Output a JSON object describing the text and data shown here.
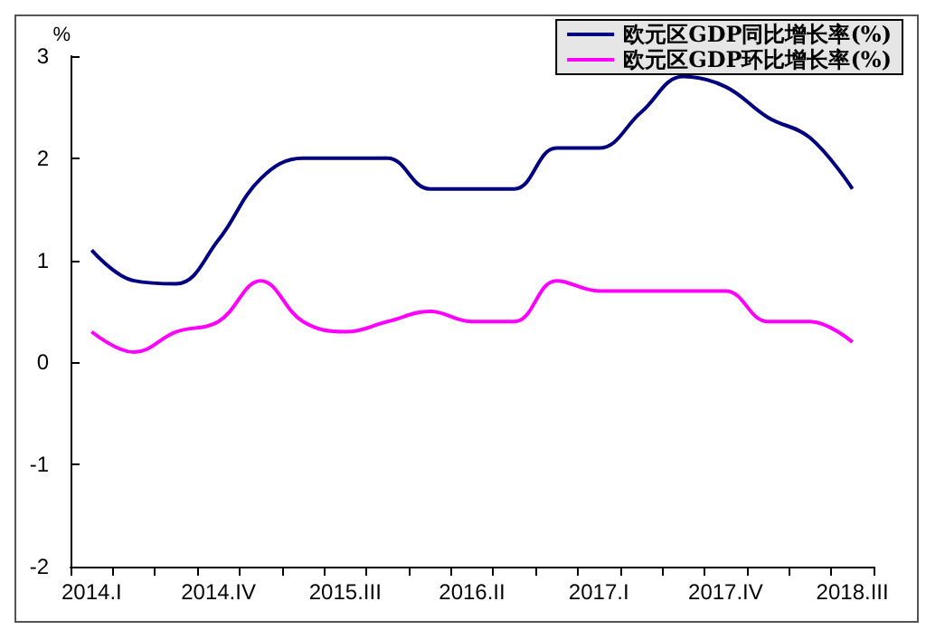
{
  "chart_data": {
    "type": "line",
    "ylabel": "%",
    "categories": [
      "2014.I",
      null,
      null,
      "2014.IV",
      null,
      null,
      "2015.III",
      null,
      null,
      "2016.II",
      null,
      null,
      "2017.I",
      null,
      null,
      "2017.IV",
      null,
      null,
      "2018.III"
    ],
    "series": [
      {
        "name": "欧元区GDP同比增长率(%)",
        "color": "#000080",
        "values": [
          1.1,
          0.8,
          0.77,
          1.2,
          1.8,
          2.0,
          2.0,
          2.0,
          1.7,
          1.7,
          1.7,
          2.1,
          2.1,
          2.45,
          2.8,
          2.7,
          2.4,
          2.2,
          1.7
        ]
      },
      {
        "name": "欧元区GDP环比增长率(%)",
        "color": "#ff00ff",
        "values": [
          0.3,
          0.1,
          0.3,
          0.4,
          0.8,
          0.4,
          0.3,
          0.4,
          0.5,
          0.4,
          0.4,
          0.8,
          0.7,
          0.7,
          0.7,
          0.7,
          0.4,
          0.4,
          0.2
        ]
      }
    ],
    "ylim": [
      -2,
      3
    ],
    "yticks": [
      -2,
      -1,
      0,
      1,
      2,
      3
    ],
    "grid": false,
    "legend": "top right",
    "marker": "none",
    "line_style": "solid"
  }
}
